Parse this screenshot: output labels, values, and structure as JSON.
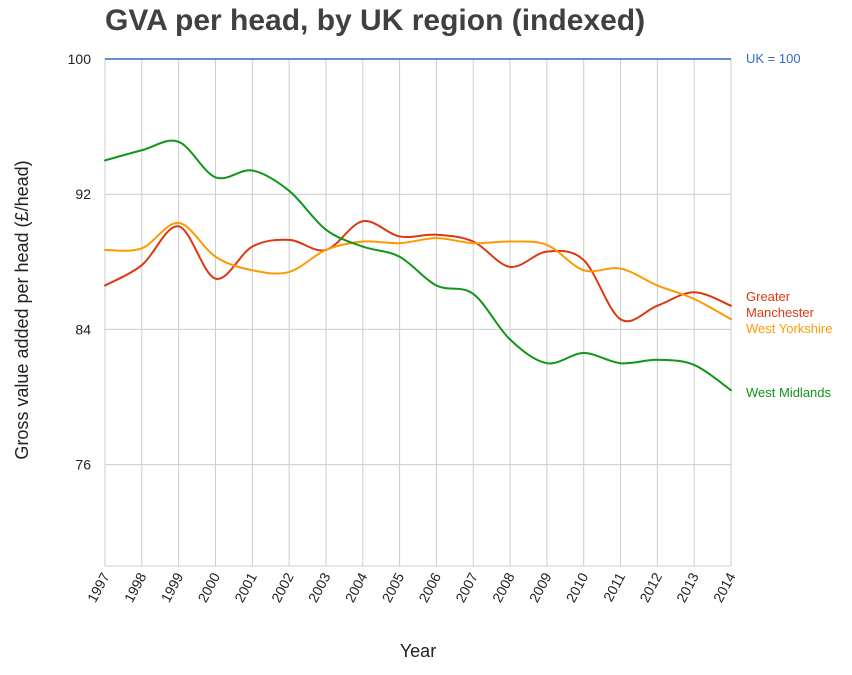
{
  "chart_data": {
    "type": "line",
    "title": "GVA per head, by UK region (indexed)",
    "xlabel": "Year",
    "ylabel": "Gross value added per head (£/head)",
    "x": [
      "1997",
      "1998",
      "1999",
      "2000",
      "2001",
      "2002",
      "2003",
      "2004",
      "2005",
      "2006",
      "2007",
      "2008",
      "2009",
      "2010",
      "2011",
      "2012",
      "2013",
      "2014"
    ],
    "ylim": [
      70,
      100
    ],
    "yticks": [
      76,
      84,
      92,
      100
    ],
    "grid": true,
    "reference_line": {
      "label": "UK = 100",
      "value": 100,
      "color": "#3366cc"
    },
    "series": [
      {
        "name": "Greater Manchester",
        "label_lines": [
          "Greater",
          "Manchester"
        ],
        "color": "#dc3912",
        "values": [
          86.6,
          87.8,
          90.1,
          87.0,
          88.9,
          89.3,
          88.7,
          90.4,
          89.5,
          89.6,
          89.2,
          87.7,
          88.6,
          88.1,
          84.6,
          85.4,
          86.2,
          85.4
        ]
      },
      {
        "name": "West Yorkshire",
        "label_lines": [
          "West Yorkshire"
        ],
        "color": "#ff9900",
        "values": [
          88.7,
          88.8,
          90.3,
          88.3,
          87.5,
          87.4,
          88.7,
          89.2,
          89.1,
          89.4,
          89.1,
          89.2,
          89.0,
          87.5,
          87.6,
          86.6,
          85.8,
          84.6
        ]
      },
      {
        "name": "West Midlands",
        "label_lines": [
          "West Midlands"
        ],
        "color": "#109618",
        "values": [
          94.0,
          94.6,
          95.1,
          93.0,
          93.4,
          92.2,
          89.9,
          88.9,
          88.3,
          86.6,
          86.1,
          83.4,
          82.0,
          82.6,
          82.0,
          82.2,
          81.9,
          80.4
        ]
      }
    ]
  }
}
